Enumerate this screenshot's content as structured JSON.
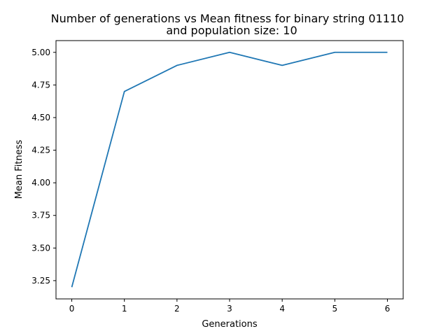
{
  "chart_data": {
    "type": "line",
    "title_lines": [
      "Number of generations vs Mean fitness for binary string 01110",
      "and population size: 10"
    ],
    "xlabel": "Generations",
    "ylabel": "Mean Fitness",
    "x": [
      0,
      1,
      2,
      3,
      4,
      5,
      6
    ],
    "series": [
      {
        "values": [
          3.2,
          4.7,
          4.9,
          5.0,
          4.9,
          5.0,
          5.0
        ],
        "color": "#1f77b4"
      }
    ],
    "xlim": [
      -0.3,
      6.3
    ],
    "ylim": [
      3.11,
      5.09
    ],
    "xticks": [
      0,
      1,
      2,
      3,
      4,
      5,
      6
    ],
    "xtick_labels": [
      "0",
      "1",
      "2",
      "3",
      "4",
      "5",
      "6"
    ],
    "yticks": [
      3.25,
      3.5,
      3.75,
      4.0,
      4.25,
      4.5,
      4.75,
      5.0
    ],
    "ytick_labels": [
      "3.25",
      "3.50",
      "3.75",
      "4.00",
      "4.25",
      "4.50",
      "4.75",
      "5.00"
    ],
    "grid": false,
    "legend": "none"
  }
}
